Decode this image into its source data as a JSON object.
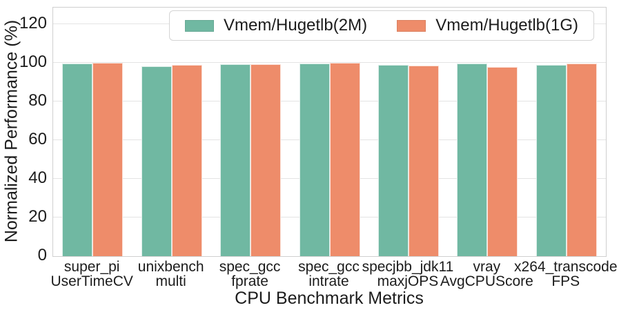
{
  "chart_data": {
    "type": "bar",
    "title": "",
    "xlabel": "CPU Benchmark Metrics",
    "ylabel": "Normalized Performance (%)",
    "ylim": [
      0,
      128.6
    ],
    "yticks": [
      0,
      20,
      40,
      60,
      80,
      100,
      120
    ],
    "grid": "horizontal",
    "legend_position": "upper center",
    "categories": [
      [
        "super_pi",
        "UserTimeCV"
      ],
      [
        "unixbench",
        "multi"
      ],
      [
        "spec_gcc",
        "fprate"
      ],
      [
        "spec_gcc",
        "intrate"
      ],
      [
        "specjbb_jdk11",
        "maxjOPS"
      ],
      [
        "vray",
        "AvgCPUScore"
      ],
      [
        "x264_transcode",
        "FPS"
      ]
    ],
    "series": [
      {
        "name": "Vmem/Hugetlb(2M)",
        "color": "#70b8a2",
        "values": [
          99.8,
          98.1,
          99.4,
          99.7,
          98.8,
          99.6,
          98.9
        ]
      },
      {
        "name": "Vmem/Hugetlb(1G)",
        "color": "#ee8c6a",
        "values": [
          100.0,
          98.9,
          99.4,
          99.9,
          98.7,
          98.0,
          99.8
        ]
      }
    ]
  },
  "style": {
    "grid_color": "#e4e4e4",
    "spine_color": "#cfcfcf",
    "text_color": "#1c1c1c",
    "background": "#ffffff"
  }
}
